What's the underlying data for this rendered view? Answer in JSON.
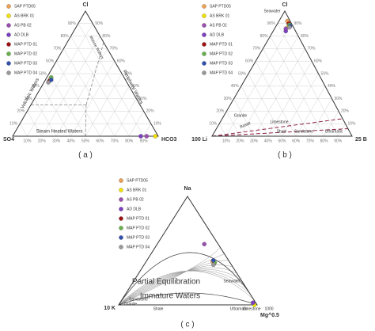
{
  "chart_data": [
    {
      "type": "ternary",
      "corners": [
        "Cl",
        "SO4",
        "HCO3"
      ],
      "panel_label": "( a )",
      "ticks": [
        {
          "value": 10,
          "label": "10%"
        },
        {
          "value": 20,
          "label": "20%"
        },
        {
          "value": 30,
          "label": "30%"
        },
        {
          "value": 40,
          "label": "40%"
        },
        {
          "value": 50,
          "label": "50%"
        },
        {
          "value": 60,
          "label": "60%"
        },
        {
          "value": 70,
          "label": "70%"
        },
        {
          "value": 80,
          "label": "80%"
        },
        {
          "value": 90,
          "label": "90%"
        }
      ],
      "grid": true,
      "annotations": [
        "Volcanic Waters",
        "Peripheral Waters",
        "Steam Heated Waters",
        "Mature Waters"
      ],
      "series": [
        {
          "name": "SAP PTD05",
          "color": "#f0a050",
          "values": [
            [
              46,
              51,
              3
            ]
          ]
        },
        {
          "name": "AS BRK 01",
          "color": "#f2e200",
          "values": [
            [
              0,
              2,
              98
            ]
          ]
        },
        {
          "name": "AS PB 02",
          "color": "#9b4fb0",
          "values": [
            [
              0,
              8,
              92
            ]
          ]
        },
        {
          "name": "AD DLB",
          "color": "#7b3fc0",
          "values": [
            [
              0,
              12,
              88
            ]
          ]
        },
        {
          "name": "MAP PTD 01",
          "color": "#a01010",
          "values": [
            [
              44,
              53,
              3
            ]
          ]
        },
        {
          "name": "MAP PTD 02",
          "color": "#6ab04c",
          "values": [
            [
              47,
              50,
              3
            ]
          ]
        },
        {
          "name": "MAP PTD 03",
          "color": "#3050b0",
          "values": [
            [
              45,
              51,
              4
            ]
          ]
        },
        {
          "name": "MAP PTD 04",
          "color": "#999999",
          "values": [
            [
              43,
              54,
              3
            ]
          ]
        }
      ]
    },
    {
      "type": "ternary",
      "corners": [
        "Cl",
        "100 Li",
        "25 B"
      ],
      "panel_label": "( b )",
      "ticks": [
        {
          "value": 10,
          "label": "10%"
        },
        {
          "value": 20,
          "label": "20%"
        },
        {
          "value": 30,
          "label": "30%"
        },
        {
          "value": 40,
          "label": "40%"
        },
        {
          "value": 50,
          "label": "50%"
        },
        {
          "value": 60,
          "label": "60%"
        },
        {
          "value": 70,
          "label": "70%"
        },
        {
          "value": 80,
          "label": "80%"
        },
        {
          "value": 90,
          "label": "90%"
        }
      ],
      "grid": true,
      "annotations": [
        "Seawater",
        "Basalt",
        "Granite",
        "Limestone",
        "Shale",
        "Sandstone",
        "Ultramafic"
      ],
      "series": [
        {
          "name": "SAP PTD05",
          "color": "#f0a050",
          "values": [
            [
              92,
              2,
              6
            ]
          ]
        },
        {
          "name": "AS BRK 01",
          "color": "#f2e200",
          "values": [
            [
              88,
              3,
              9
            ]
          ]
        },
        {
          "name": "AS PB 02",
          "color": "#9b4fb0",
          "values": [
            [
              86,
              6,
              8
            ]
          ]
        },
        {
          "name": "AD DLB",
          "color": "#7b3fc0",
          "values": [
            [
              84,
              7,
              9
            ]
          ]
        },
        {
          "name": "MAP PTD 01",
          "color": "#a01010",
          "values": [
            [
              90,
              2,
              8
            ]
          ]
        },
        {
          "name": "MAP PTD 02",
          "color": "#6ab04c",
          "values": [
            [
              89,
              2,
              9
            ]
          ]
        },
        {
          "name": "MAP PTD 03",
          "color": "#3050b0",
          "values": [
            [
              88,
              2,
              10
            ]
          ]
        },
        {
          "name": "MAP PTD 04",
          "color": "#999999",
          "values": [
            [
              87,
              3,
              10
            ]
          ]
        }
      ]
    },
    {
      "type": "ternary",
      "corners": [
        "Na",
        "10 K",
        "Mg^0.5"
      ],
      "panel_label": "( c )",
      "grid": false,
      "annotations": [
        "Partial Equilibration",
        "Immature Waters",
        "Seawater",
        "Sandstone",
        "Granite",
        "Shale",
        "Ultramafic",
        "Limestone",
        "1000"
      ],
      "series": [
        {
          "name": "SAP PTD05",
          "color": "#f0a050",
          "values": [
            [
              40,
              12,
              48
            ]
          ]
        },
        {
          "name": "AS BRK 01",
          "color": "#f2e200",
          "values": [
            [
              0,
              2,
              98
            ]
          ]
        },
        {
          "name": "AS PB 02",
          "color": "#9b4fb0",
          "values": [
            [
              56,
              10,
              34
            ]
          ]
        },
        {
          "name": "AD DLB",
          "color": "#7b3fc0",
          "values": [
            [
              2,
              2,
              96
            ]
          ]
        },
        {
          "name": "MAP PTD 01",
          "color": "#a01010",
          "values": [
            [
              38,
              12,
              50
            ]
          ]
        },
        {
          "name": "MAP PTD 02",
          "color": "#6ab04c",
          "values": [
            [
              39,
              11,
              50
            ]
          ]
        },
        {
          "name": "MAP PTD 03",
          "color": "#3050b0",
          "values": [
            [
              41,
              11,
              48
            ]
          ]
        },
        {
          "name": "MAP PTD 04",
          "color": "#999999",
          "values": [
            [
              37,
              13,
              50
            ]
          ]
        }
      ]
    }
  ]
}
